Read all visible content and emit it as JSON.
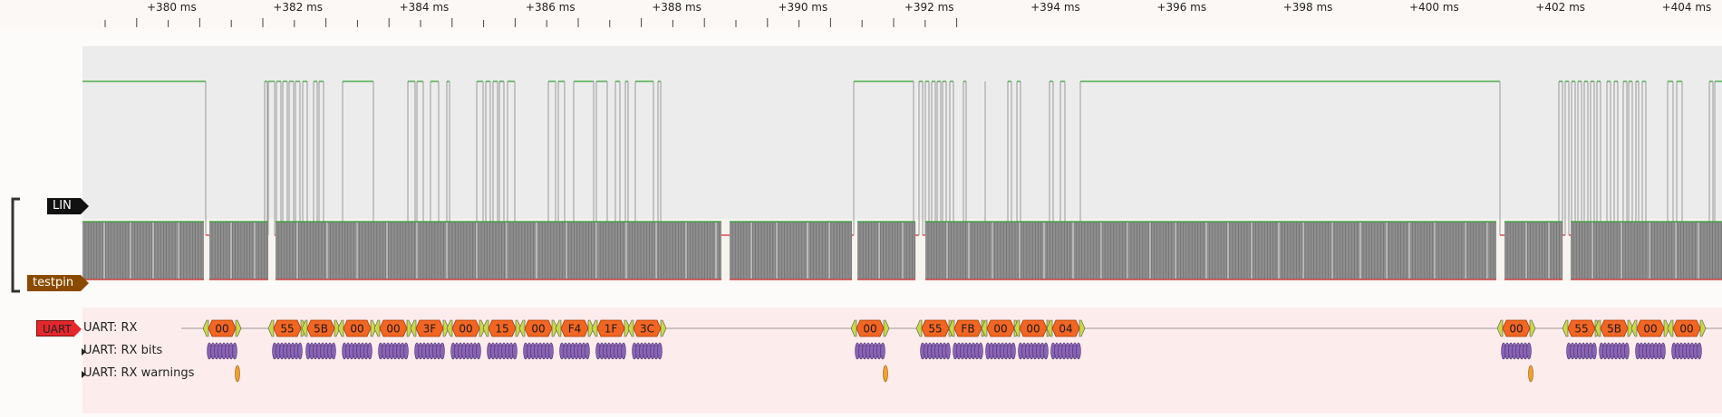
{
  "ruler": {
    "ticks": [
      "+380 ms",
      "+382 ms",
      "+384 ms",
      "+386 ms",
      "+388 ms",
      "+390 ms",
      "+392 ms",
      "+394 ms",
      "+396 ms",
      "+398 ms",
      "+400 ms",
      "+402 ms",
      "+404 ms"
    ]
  },
  "channels": {
    "lin": "LIN",
    "testpin": "testpin",
    "uart": "UART"
  },
  "rows": {
    "rx": "UART: RX",
    "rx_bits": "UART: RX bits",
    "rx_warnings": "UART: RX warnings"
  },
  "bytes": [
    "00",
    "55",
    "5B",
    "00",
    "00",
    "3F",
    "00",
    "15",
    "00",
    "F4",
    "1F",
    "3C",
    "00",
    "55",
    "FB",
    "00",
    "00",
    "04",
    "00",
    "55",
    "5B",
    "00",
    "00"
  ],
  "colors": {
    "high": "#2ca02c",
    "low": "#d62728",
    "byte_fill": "#f26522",
    "bits_fill": "#8a64b4",
    "warning_fill": "#f0a030",
    "decode_bg": "#fdecec"
  }
}
